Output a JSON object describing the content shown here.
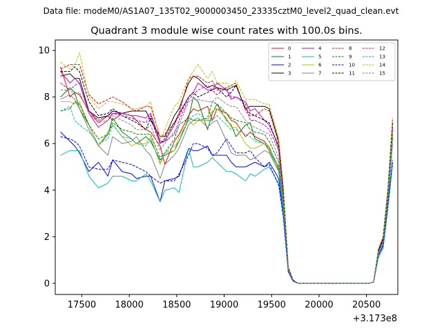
{
  "suptitle": "Data file: modeM0/AS1A07_135T02_9000003450_23335cztM0_level2_quad_clean.evt",
  "chart_data": {
    "type": "line",
    "title": "Quadrant 3 module wise count rates with 100.0s bins.",
    "xlabel": "",
    "ylabel": "",
    "x_offset_label": "+3.173e8",
    "xlim": [
      17220,
      20830
    ],
    "ylim": [
      -0.48,
      10.45
    ],
    "xticks": [
      17500,
      18000,
      18500,
      19000,
      19500,
      20000,
      20500
    ],
    "xtick_labels": [
      "17500",
      "18000",
      "18500",
      "19000",
      "19500",
      "20000",
      "20500"
    ],
    "yticks": [
      0,
      2,
      4,
      6,
      8,
      10
    ],
    "ytick_labels": [
      "0",
      "2",
      "4",
      "6",
      "8",
      "10"
    ],
    "grid": false,
    "legend_position": "top-right",
    "x": [
      17275,
      17375,
      17425,
      17475,
      17575,
      17675,
      17775,
      17825,
      17925,
      18025,
      18075,
      18175,
      18225,
      18325,
      18375,
      18475,
      18525,
      18625,
      18675,
      18725,
      18825,
      18875,
      18925,
      19025,
      19075,
      19125,
      19225,
      19275,
      19325,
      19425,
      19475,
      19575,
      19625,
      19675,
      19725,
      19775,
      20525,
      20575,
      20625,
      20675,
      20725,
      20775
    ],
    "series": [
      {
        "name": "0",
        "color": "#ff0000",
        "dash": "solid",
        "values": [
          9.3,
          8.0,
          8.2,
          8.1,
          7.4,
          6.9,
          7.2,
          7.0,
          7.3,
          7.2,
          7.0,
          6.6,
          6.5,
          5.9,
          5.1,
          6.1,
          6.4,
          7.2,
          7.5,
          7.4,
          7.6,
          7.0,
          7.5,
          7.3,
          7.0,
          6.9,
          6.3,
          6.5,
          6.3,
          6.1,
          5.8,
          5.0,
          3.5,
          0.6,
          0.15,
          0,
          0,
          0.05,
          1.4,
          1.9,
          3.8,
          6.9
        ]
      },
      {
        "name": "1",
        "color": "#008000",
        "dash": "solid",
        "values": [
          8.0,
          8.4,
          8.2,
          7.5,
          6.8,
          5.9,
          6.4,
          7.1,
          6.5,
          6.2,
          6.0,
          6.3,
          6.1,
          5.3,
          5.5,
          5.7,
          6.1,
          7.1,
          8.0,
          7.8,
          6.6,
          7.3,
          7.7,
          7.0,
          6.8,
          6.3,
          6.8,
          6.9,
          6.2,
          6.0,
          5.7,
          4.9,
          3.3,
          0.6,
          0.15,
          0,
          0,
          0.05,
          1.3,
          1.8,
          3.6,
          6.3
        ]
      },
      {
        "name": "2",
        "color": "#0000ff",
        "dash": "solid",
        "values": [
          6.5,
          6.1,
          5.9,
          5.6,
          4.8,
          5.2,
          4.6,
          5.3,
          4.8,
          4.7,
          4.5,
          4.6,
          4.6,
          3.5,
          4.4,
          4.5,
          4.6,
          5.8,
          5.7,
          5.7,
          5.9,
          5.5,
          5.5,
          5.5,
          5.2,
          5.0,
          5.0,
          5.1,
          5.2,
          5.0,
          5.2,
          4.5,
          3.0,
          0.5,
          0.1,
          0,
          0,
          0.05,
          1.2,
          1.6,
          3.3,
          5.2
        ]
      },
      {
        "name": "3",
        "color": "#000000",
        "dash": "solid",
        "values": [
          8.9,
          9.0,
          8.8,
          8.8,
          7.4,
          7.1,
          7.2,
          7.4,
          7.3,
          7.4,
          7.4,
          7.4,
          7.0,
          6.3,
          6.3,
          7.2,
          7.5,
          8.6,
          8.9,
          8.8,
          8.4,
          8.5,
          8.4,
          8.3,
          8.4,
          8.5,
          7.5,
          7.6,
          7.6,
          7.6,
          7.5,
          6.1,
          4.0,
          0.7,
          0.15,
          0,
          0,
          0.05,
          1.4,
          2.0,
          4.0,
          6.9
        ]
      },
      {
        "name": "4",
        "color": "#bf00bf",
        "dash": "solid",
        "values": [
          9.1,
          8.6,
          8.8,
          8.6,
          7.3,
          6.7,
          7.0,
          7.3,
          7.3,
          7.2,
          7.2,
          7.1,
          7.3,
          6.1,
          6.1,
          6.8,
          7.3,
          8.0,
          8.2,
          8.6,
          8.3,
          8.3,
          8.6,
          8.3,
          7.9,
          8.0,
          7.8,
          7.4,
          7.5,
          7.0,
          6.8,
          5.9,
          3.8,
          0.6,
          0.15,
          0,
          0,
          0.05,
          1.3,
          1.9,
          3.9,
          6.7
        ]
      },
      {
        "name": "5",
        "color": "#00bfbf",
        "dash": "solid",
        "values": [
          5.5,
          5.7,
          5.7,
          5.7,
          4.6,
          4.1,
          4.3,
          4.6,
          4.6,
          4.4,
          4.4,
          4.7,
          4.4,
          3.5,
          4.0,
          4.1,
          3.9,
          5.8,
          5.0,
          5.0,
          5.2,
          5.4,
          5.2,
          4.8,
          4.8,
          4.7,
          4.4,
          4.7,
          4.6,
          4.9,
          5.0,
          4.3,
          2.8,
          0.5,
          0.1,
          0,
          0,
          0.05,
          1.1,
          1.5,
          3.2,
          5.1
        ]
      },
      {
        "name": "6",
        "color": "#bfbf00",
        "dash": "solid",
        "values": [
          7.8,
          7.8,
          7.7,
          7.8,
          6.8,
          5.9,
          6.5,
          6.8,
          6.3,
          5.9,
          6.0,
          6.0,
          6.3,
          5.1,
          5.6,
          5.7,
          6.3,
          7.0,
          6.8,
          7.0,
          7.0,
          7.4,
          7.5,
          7.1,
          6.7,
          6.7,
          6.0,
          5.8,
          5.8,
          6.0,
          5.9,
          4.8,
          3.2,
          0.6,
          0.15,
          0,
          0,
          0.05,
          1.3,
          1.8,
          3.5,
          6.2
        ]
      },
      {
        "name": "7",
        "color": "#808080",
        "dash": "solid",
        "values": [
          7.9,
          8.1,
          7.9,
          7.5,
          6.6,
          5.9,
          5.5,
          6.3,
          6.0,
          6.1,
          6.3,
          5.7,
          5.5,
          4.5,
          5.1,
          5.5,
          5.8,
          6.8,
          7.0,
          7.1,
          6.7,
          6.9,
          7.0,
          6.1,
          5.6,
          5.5,
          5.5,
          5.3,
          5.4,
          5.7,
          5.6,
          4.8,
          3.1,
          0.5,
          0.1,
          0,
          0,
          0.05,
          1.2,
          1.7,
          3.4,
          6.0
        ]
      },
      {
        "name": "8",
        "color": "#ff0000",
        "dash": "dashed",
        "values": [
          9.2,
          9.4,
          9.4,
          9.4,
          8.1,
          7.7,
          7.9,
          8.0,
          7.8,
          7.5,
          7.4,
          7.6,
          7.6,
          6.3,
          6.4,
          6.9,
          7.3,
          8.8,
          8.9,
          8.9,
          8.6,
          8.7,
          8.3,
          8.4,
          8.5,
          8.6,
          7.4,
          7.2,
          7.2,
          7.5,
          7.4,
          6.0,
          3.9,
          0.7,
          0.15,
          0,
          0,
          0.05,
          1.4,
          2.0,
          4.0,
          7.1
        ]
      },
      {
        "name": "9",
        "color": "#008000",
        "dash": "dashed",
        "values": [
          7.4,
          7.5,
          7.8,
          7.7,
          6.8,
          6.2,
          6.4,
          6.9,
          6.6,
          6.5,
          6.4,
          6.4,
          6.4,
          5.4,
          5.6,
          6.2,
          6.8,
          7.1,
          7.0,
          7.0,
          7.1,
          7.8,
          7.7,
          7.3,
          7.1,
          7.0,
          6.9,
          6.6,
          6.5,
          6.4,
          6.1,
          5.2,
          3.4,
          0.6,
          0.15,
          0,
          0,
          0.05,
          1.3,
          1.8,
          3.7,
          6.4
        ]
      },
      {
        "name": "10",
        "color": "#0000ff",
        "dash": "dashed",
        "values": [
          6.3,
          6.2,
          6.1,
          5.9,
          5.0,
          4.9,
          4.9,
          5.3,
          5.2,
          5.1,
          5.0,
          4.8,
          4.6,
          4.3,
          4.4,
          4.4,
          4.7,
          5.5,
          6.0,
          6.0,
          5.8,
          5.5,
          5.6,
          6.2,
          5.9,
          5.6,
          5.6,
          5.7,
          5.4,
          5.0,
          5.1,
          4.2,
          2.8,
          0.5,
          0.1,
          0,
          0,
          0.05,
          1.2,
          1.6,
          3.3,
          5.3
        ]
      },
      {
        "name": "11",
        "color": "#000000",
        "dash": "dashed",
        "values": [
          9.1,
          9.1,
          9.3,
          9.1,
          7.8,
          7.2,
          7.3,
          7.5,
          7.2,
          7.0,
          6.9,
          6.6,
          7.1,
          6.0,
          6.2,
          6.9,
          7.2,
          8.0,
          8.2,
          8.0,
          8.2,
          8.3,
          8.4,
          8.0,
          8.2,
          8.5,
          7.5,
          7.3,
          7.2,
          7.0,
          6.9,
          5.8,
          3.9,
          0.7,
          0.15,
          0,
          0,
          0.05,
          1.4,
          1.9,
          3.9,
          6.9
        ]
      },
      {
        "name": "12",
        "color": "#bf00bf",
        "dash": "dashed",
        "values": [
          8.6,
          8.3,
          8.5,
          8.6,
          7.4,
          7.0,
          7.2,
          7.3,
          7.2,
          7.1,
          7.0,
          6.9,
          7.2,
          6.0,
          6.1,
          6.4,
          7.0,
          7.9,
          8.1,
          8.3,
          8.5,
          8.3,
          8.1,
          8.4,
          8.0,
          8.0,
          7.7,
          7.0,
          7.0,
          6.8,
          6.6,
          5.7,
          3.7,
          0.6,
          0.15,
          0,
          0,
          0.05,
          1.3,
          1.8,
          3.8,
          6.6
        ]
      },
      {
        "name": "13",
        "color": "#00bfbf",
        "dash": "dashed",
        "values": [
          7.4,
          7.6,
          7.0,
          6.8,
          6.5,
          6.0,
          6.2,
          6.8,
          6.3,
          6.2,
          6.0,
          5.9,
          6.2,
          5.2,
          5.6,
          5.9,
          6.1,
          7.0,
          7.2,
          7.3,
          7.0,
          7.0,
          7.2,
          6.8,
          6.6,
          6.6,
          6.4,
          6.3,
          6.1,
          6.0,
          5.8,
          5.0,
          3.3,
          0.6,
          0.15,
          0,
          0,
          0.05,
          1.3,
          1.8,
          3.5,
          6.2
        ]
      },
      {
        "name": "14",
        "color": "#bfbf00",
        "dash": "dashed",
        "values": [
          9.5,
          9.2,
          9.4,
          9.9,
          8.0,
          7.5,
          7.8,
          7.8,
          7.7,
          7.5,
          7.5,
          7.6,
          7.8,
          6.2,
          6.6,
          7.6,
          7.8,
          8.8,
          9.1,
          9.4,
          8.8,
          9.1,
          8.6,
          8.6,
          8.4,
          8.7,
          7.9,
          7.9,
          7.9,
          7.7,
          7.7,
          6.2,
          4.1,
          0.7,
          0.15,
          0,
          0,
          0.05,
          1.5,
          2.0,
          4.1,
          7.0
        ]
      },
      {
        "name": "15",
        "color": "#808080",
        "dash": "dashed",
        "values": [
          8.3,
          8.3,
          8.1,
          8.2,
          7.3,
          6.9,
          7.0,
          7.2,
          7.0,
          6.8,
          6.6,
          6.6,
          6.8,
          5.7,
          6.0,
          6.5,
          6.8,
          7.8,
          7.9,
          7.9,
          7.8,
          7.8,
          8.0,
          7.7,
          7.6,
          7.6,
          7.0,
          6.8,
          6.7,
          6.5,
          6.4,
          5.4,
          3.6,
          0.6,
          0.15,
          0,
          0,
          0.05,
          1.3,
          1.8,
          3.7,
          6.5
        ]
      }
    ]
  }
}
